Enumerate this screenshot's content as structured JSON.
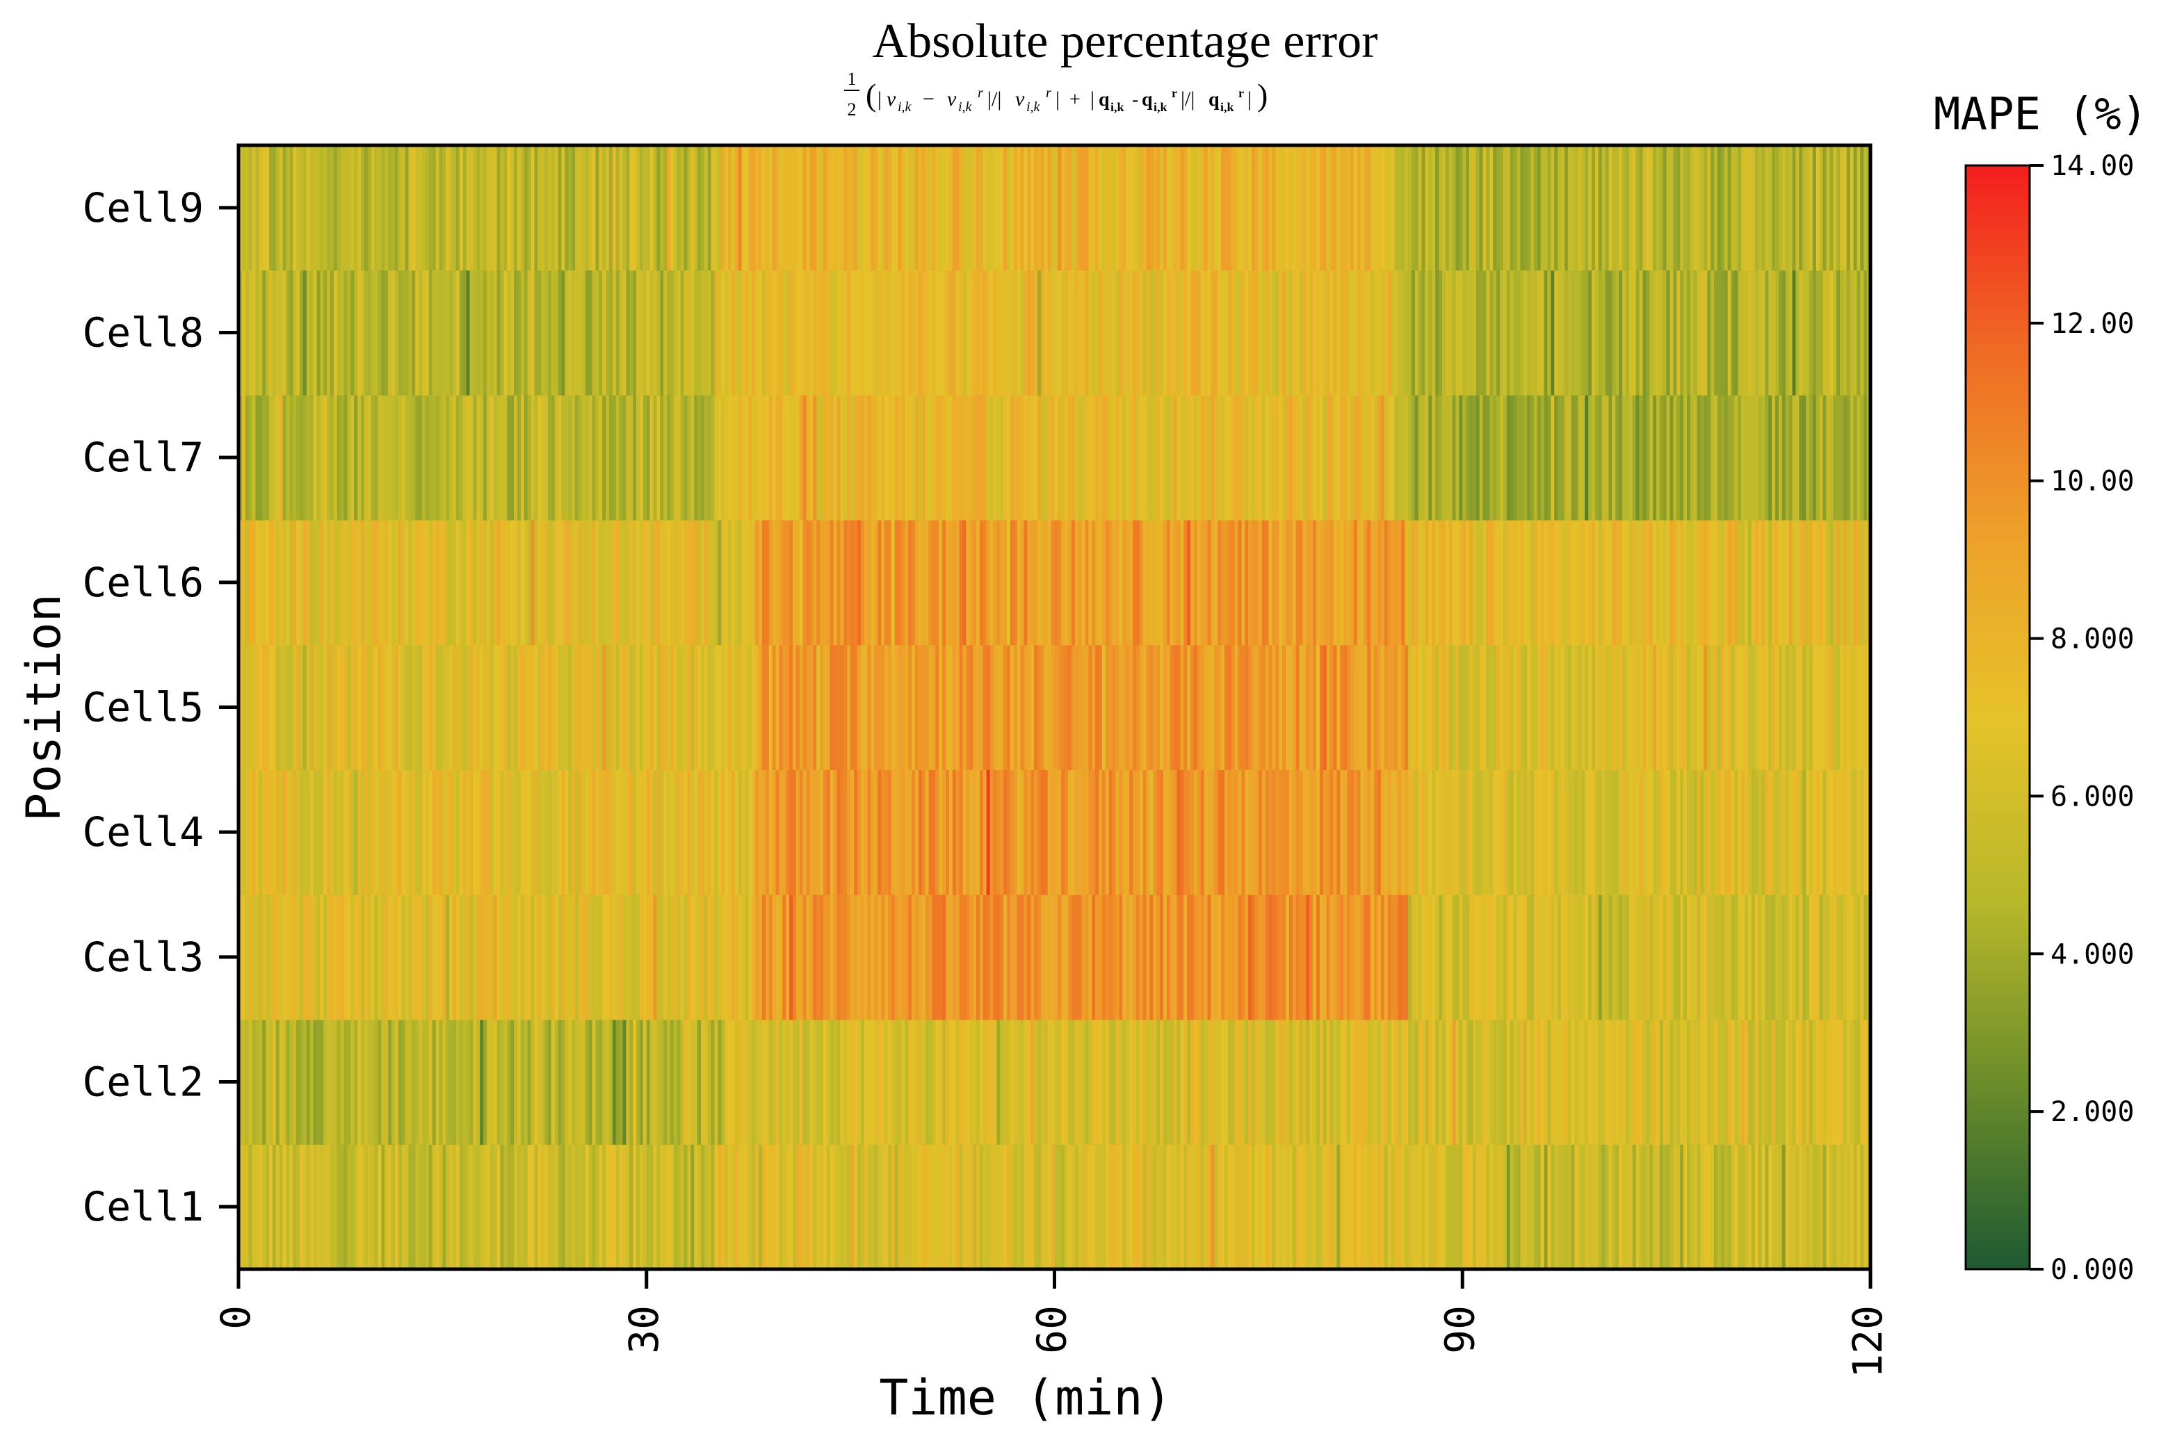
{
  "chart_data": {
    "type": "heatmap",
    "title": "Absolute percentage error",
    "subtitle": "½(|v_{i,k} − v_{i,k}^r| / |v_{i,k}^r| + |q_{i,k} − q_{i,k}^r| / |q_{i,k}^r|)",
    "xlabel": "Time (min)",
    "ylabel": "Position",
    "xlim": [
      0,
      120
    ],
    "x_ticks": [
      "0",
      "30",
      "60",
      "90",
      "120"
    ],
    "rows": [
      "Cell1",
      "Cell2",
      "Cell3",
      "Cell4",
      "Cell5",
      "Cell6",
      "Cell7",
      "Cell8",
      "Cell9"
    ],
    "colorbar": {
      "label": "MAPE (%)",
      "range": [
        0,
        14
      ],
      "ticks": [
        "0.000",
        "2.000",
        "4.000",
        "6.000",
        "8.000",
        "10.00",
        "12.00",
        "14.00"
      ],
      "colors": [
        "#1e5a32",
        "#6a8c2a",
        "#b8b82a",
        "#e6c22a",
        "#eea02a",
        "#ef6a24",
        "#f41e1e"
      ]
    },
    "segments": [
      {
        "row": "Cell1",
        "from": 0,
        "to": 35,
        "mean": 5.6
      },
      {
        "row": "Cell1",
        "from": 35,
        "to": 92,
        "mean": 6.6
      },
      {
        "row": "Cell1",
        "from": 92,
        "to": 120,
        "mean": 5.6
      },
      {
        "row": "Cell2",
        "from": 0,
        "to": 36,
        "mean": 5.0
      },
      {
        "row": "Cell2",
        "from": 36,
        "to": 120,
        "mean": 6.4
      },
      {
        "row": "Cell3",
        "from": 0,
        "to": 38,
        "mean": 6.8
      },
      {
        "row": "Cell3",
        "from": 38,
        "to": 86,
        "mean": 9.6
      },
      {
        "row": "Cell3",
        "from": 86,
        "to": 120,
        "mean": 6.0
      },
      {
        "row": "Cell4",
        "from": 0,
        "to": 38,
        "mean": 7.0
      },
      {
        "row": "Cell4",
        "from": 38,
        "to": 86,
        "mean": 9.6
      },
      {
        "row": "Cell4",
        "from": 86,
        "to": 120,
        "mean": 6.6
      },
      {
        "row": "Cell5",
        "from": 0,
        "to": 38,
        "mean": 6.8
      },
      {
        "row": "Cell5",
        "from": 38,
        "to": 86,
        "mean": 9.5
      },
      {
        "row": "Cell5",
        "from": 86,
        "to": 120,
        "mean": 6.6
      },
      {
        "row": "Cell6",
        "from": 0,
        "to": 38,
        "mean": 7.0
      },
      {
        "row": "Cell6",
        "from": 38,
        "to": 86,
        "mean": 9.4
      },
      {
        "row": "Cell6",
        "from": 86,
        "to": 120,
        "mean": 7.2
      },
      {
        "row": "Cell7",
        "from": 0,
        "to": 35,
        "mean": 5.0
      },
      {
        "row": "Cell7",
        "from": 35,
        "to": 85,
        "mean": 7.4
      },
      {
        "row": "Cell7",
        "from": 85,
        "to": 120,
        "mean": 4.2
      },
      {
        "row": "Cell8",
        "from": 0,
        "to": 35,
        "mean": 5.0
      },
      {
        "row": "Cell8",
        "from": 35,
        "to": 85,
        "mean": 7.2
      },
      {
        "row": "Cell8",
        "from": 85,
        "to": 120,
        "mean": 4.6
      },
      {
        "row": "Cell9",
        "from": 0,
        "to": 35,
        "mean": 5.2
      },
      {
        "row": "Cell9",
        "from": 35,
        "to": 85,
        "mean": 7.8
      },
      {
        "row": "Cell9",
        "from": 85,
        "to": 120,
        "mean": 4.8
      }
    ]
  }
}
